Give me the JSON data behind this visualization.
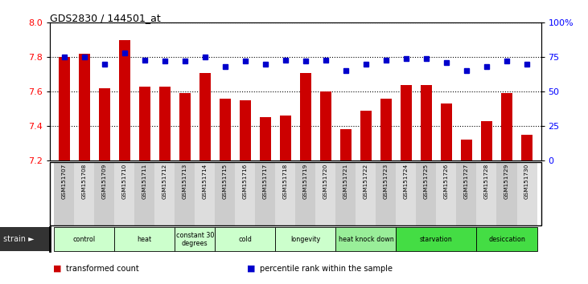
{
  "title": "GDS2830 / 144501_at",
  "samples": [
    "GSM151707",
    "GSM151708",
    "GSM151709",
    "GSM151710",
    "GSM151711",
    "GSM151712",
    "GSM151713",
    "GSM151714",
    "GSM151715",
    "GSM151716",
    "GSM151717",
    "GSM151718",
    "GSM151719",
    "GSM151720",
    "GSM151721",
    "GSM151722",
    "GSM151723",
    "GSM151724",
    "GSM151725",
    "GSM151726",
    "GSM151727",
    "GSM151728",
    "GSM151729",
    "GSM151730"
  ],
  "bar_values": [
    7.8,
    7.82,
    7.62,
    7.9,
    7.63,
    7.63,
    7.59,
    7.71,
    7.56,
    7.55,
    7.45,
    7.46,
    7.71,
    7.6,
    7.38,
    7.49,
    7.56,
    7.64,
    7.64,
    7.53,
    7.32,
    7.43,
    7.59,
    7.35
  ],
  "percentile_values": [
    75,
    75,
    70,
    78,
    73,
    72,
    72,
    75,
    68,
    72,
    70,
    73,
    72,
    73,
    65,
    70,
    73,
    74,
    74,
    71,
    65,
    68,
    72,
    70
  ],
  "bar_color": "#cc0000",
  "percentile_color": "#0000cc",
  "ylim_left": [
    7.2,
    8.0
  ],
  "ylim_right": [
    0,
    100
  ],
  "yticks_left": [
    7.2,
    7.4,
    7.6,
    7.8,
    8.0
  ],
  "yticks_right": [
    0,
    25,
    50,
    75,
    100
  ],
  "ytick_labels_right": [
    "0",
    "25",
    "50",
    "75",
    "100%"
  ],
  "groups": [
    {
      "label": "control",
      "start": 0,
      "end": 3,
      "color": "#ccffcc"
    },
    {
      "label": "heat",
      "start": 3,
      "end": 6,
      "color": "#ccffcc"
    },
    {
      "label": "constant 30\ndegrees",
      "start": 6,
      "end": 8,
      "color": "#ccffcc"
    },
    {
      "label": "cold",
      "start": 8,
      "end": 11,
      "color": "#ccffcc"
    },
    {
      "label": "longevity",
      "start": 11,
      "end": 14,
      "color": "#ccffcc"
    },
    {
      "label": "heat knock down",
      "start": 14,
      "end": 17,
      "color": "#99ee99"
    },
    {
      "label": "starvation",
      "start": 17,
      "end": 21,
      "color": "#44dd44"
    },
    {
      "label": "desiccation",
      "start": 21,
      "end": 24,
      "color": "#44dd44"
    }
  ],
  "legend_items": [
    {
      "label": "transformed count",
      "color": "#cc0000"
    },
    {
      "label": "percentile rank within the sample",
      "color": "#0000cc"
    }
  ],
  "background_color": "#ffffff",
  "strain_label": "strain"
}
